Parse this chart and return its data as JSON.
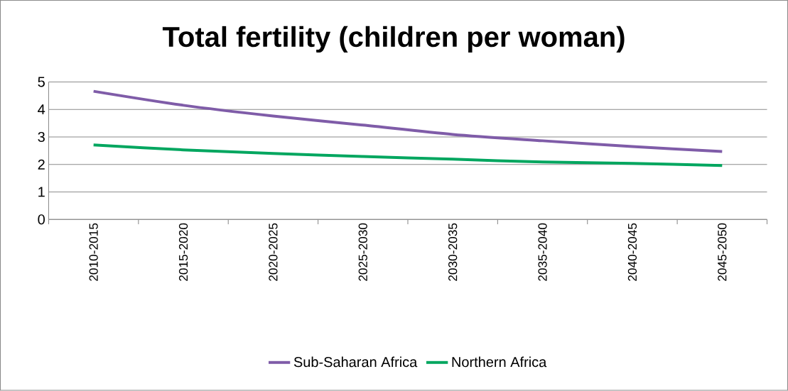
{
  "chart_data": {
    "type": "line",
    "title": "Total fertility (children per woman)",
    "categories": [
      "2010-2015",
      "2015-2020",
      "2020-2025",
      "2025-2030",
      "2030-2035",
      "2035-2040",
      "2040-2045",
      "2045-2050"
    ],
    "series": [
      {
        "name": "Sub-Saharan Africa",
        "color": "#7f5ca8",
        "values": [
          4.66,
          4.15,
          3.76,
          3.43,
          3.09,
          2.86,
          2.65,
          2.47
        ]
      },
      {
        "name": "Northern Africa",
        "color": "#00a65f",
        "values": [
          2.71,
          2.53,
          2.4,
          2.29,
          2.19,
          2.09,
          2.04,
          1.96
        ]
      }
    ],
    "ylim": [
      0,
      5
    ],
    "yticks": [
      0,
      1,
      2,
      3,
      4,
      5
    ],
    "grid": "y",
    "legend": "bottom",
    "marker": "none",
    "line_style": "solid"
  }
}
